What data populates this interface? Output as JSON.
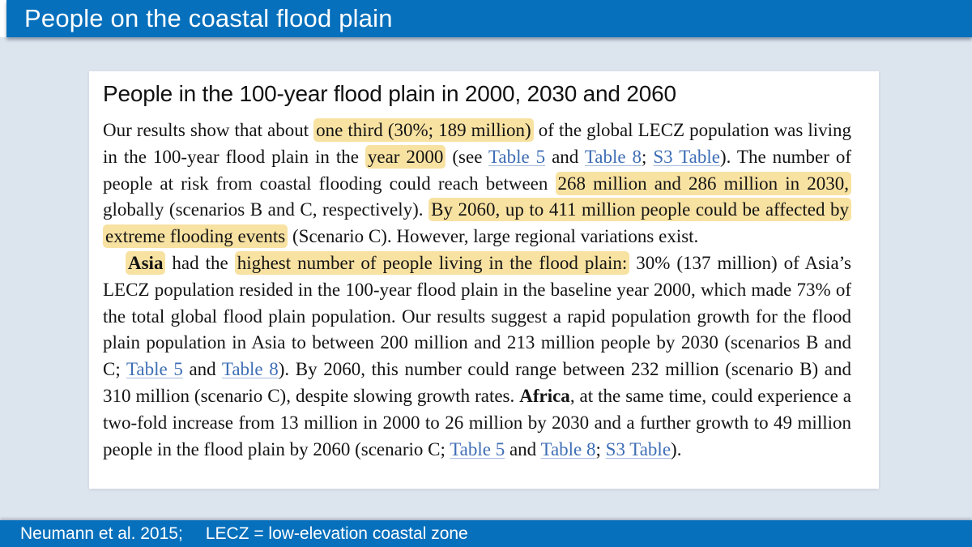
{
  "colors": {
    "accent_blue": "#0770BC",
    "background": "#DCE4EE",
    "highlight_yellow": "#F8E2A2",
    "link_blue": "#3E6EB5"
  },
  "header": {
    "title": "People on the coastal flood plain"
  },
  "card": {
    "heading": "People in the 100-year flood plain in 2000, 2030 and 2060",
    "paragraphs": [
      {
        "indent": false,
        "segments": [
          {
            "style": "plain",
            "text": "Our results show that about "
          },
          {
            "style": "highlight",
            "text": "one third (30%; 189 million)"
          },
          {
            "style": "plain",
            "text": " of the global LECZ population was living in the 100-year flood plain in the "
          },
          {
            "style": "highlight",
            "text": "year 2000"
          },
          {
            "style": "plain",
            "text": " (see "
          },
          {
            "style": "link",
            "text": "Table 5"
          },
          {
            "style": "plain",
            "text": " and "
          },
          {
            "style": "link",
            "text": "Table 8"
          },
          {
            "style": "plain",
            "text": "; "
          },
          {
            "style": "link",
            "text": "S3 Table"
          },
          {
            "style": "plain",
            "text": "). The number of people at risk from coastal flooding could reach between "
          },
          {
            "style": "highlight",
            "text": "268 million and 286 million in 2030,"
          },
          {
            "style": "plain",
            "text": " globally (scenarios B and C, respectively). "
          },
          {
            "style": "highlight",
            "text": "By 2060, up to 411 million people could be affected by extreme flooding events"
          },
          {
            "style": "plain",
            "text": " (Scenario C). However, large regional variations exist."
          }
        ]
      },
      {
        "indent": true,
        "segments": [
          {
            "style": "bold-highlight",
            "text": "Asia"
          },
          {
            "style": "plain",
            "text": " had the "
          },
          {
            "style": "highlight",
            "text": "highest number of people living in the flood plain:"
          },
          {
            "style": "plain",
            "text": " 30% (137 million) of Asia’s LECZ population resided in the 100-year flood plain in the baseline year 2000, which made 73% of the total global flood plain population. Our results suggest a rapid population growth for the flood plain population in Asia to between 200 million and 213 million people by 2030 (scenarios B and C; "
          },
          {
            "style": "link",
            "text": "Table 5"
          },
          {
            "style": "plain",
            "text": " and "
          },
          {
            "style": "link",
            "text": "Table 8"
          },
          {
            "style": "plain",
            "text": "). By 2060, this number could range between 232 million (scenario B) and 310 million (scenario C), despite slowing growth rates. "
          },
          {
            "style": "bold",
            "text": "Africa"
          },
          {
            "style": "plain",
            "text": ", at the same time, could experience a two-fold increase from 13 million in 2000 to 26 million by 2030 and a further growth to 49 million people in the flood plain by 2060 (scenario C; "
          },
          {
            "style": "link",
            "text": "Table 5"
          },
          {
            "style": "plain",
            "text": " and "
          },
          {
            "style": "link",
            "text": "Table 8"
          },
          {
            "style": "plain",
            "text": "; "
          },
          {
            "style": "link",
            "text": "S3 Table"
          },
          {
            "style": "plain",
            "text": ")."
          }
        ]
      }
    ]
  },
  "footer": {
    "citation": "Neumann et al. 2015;",
    "abbreviation": "LECZ = low-elevation coastal zone"
  }
}
